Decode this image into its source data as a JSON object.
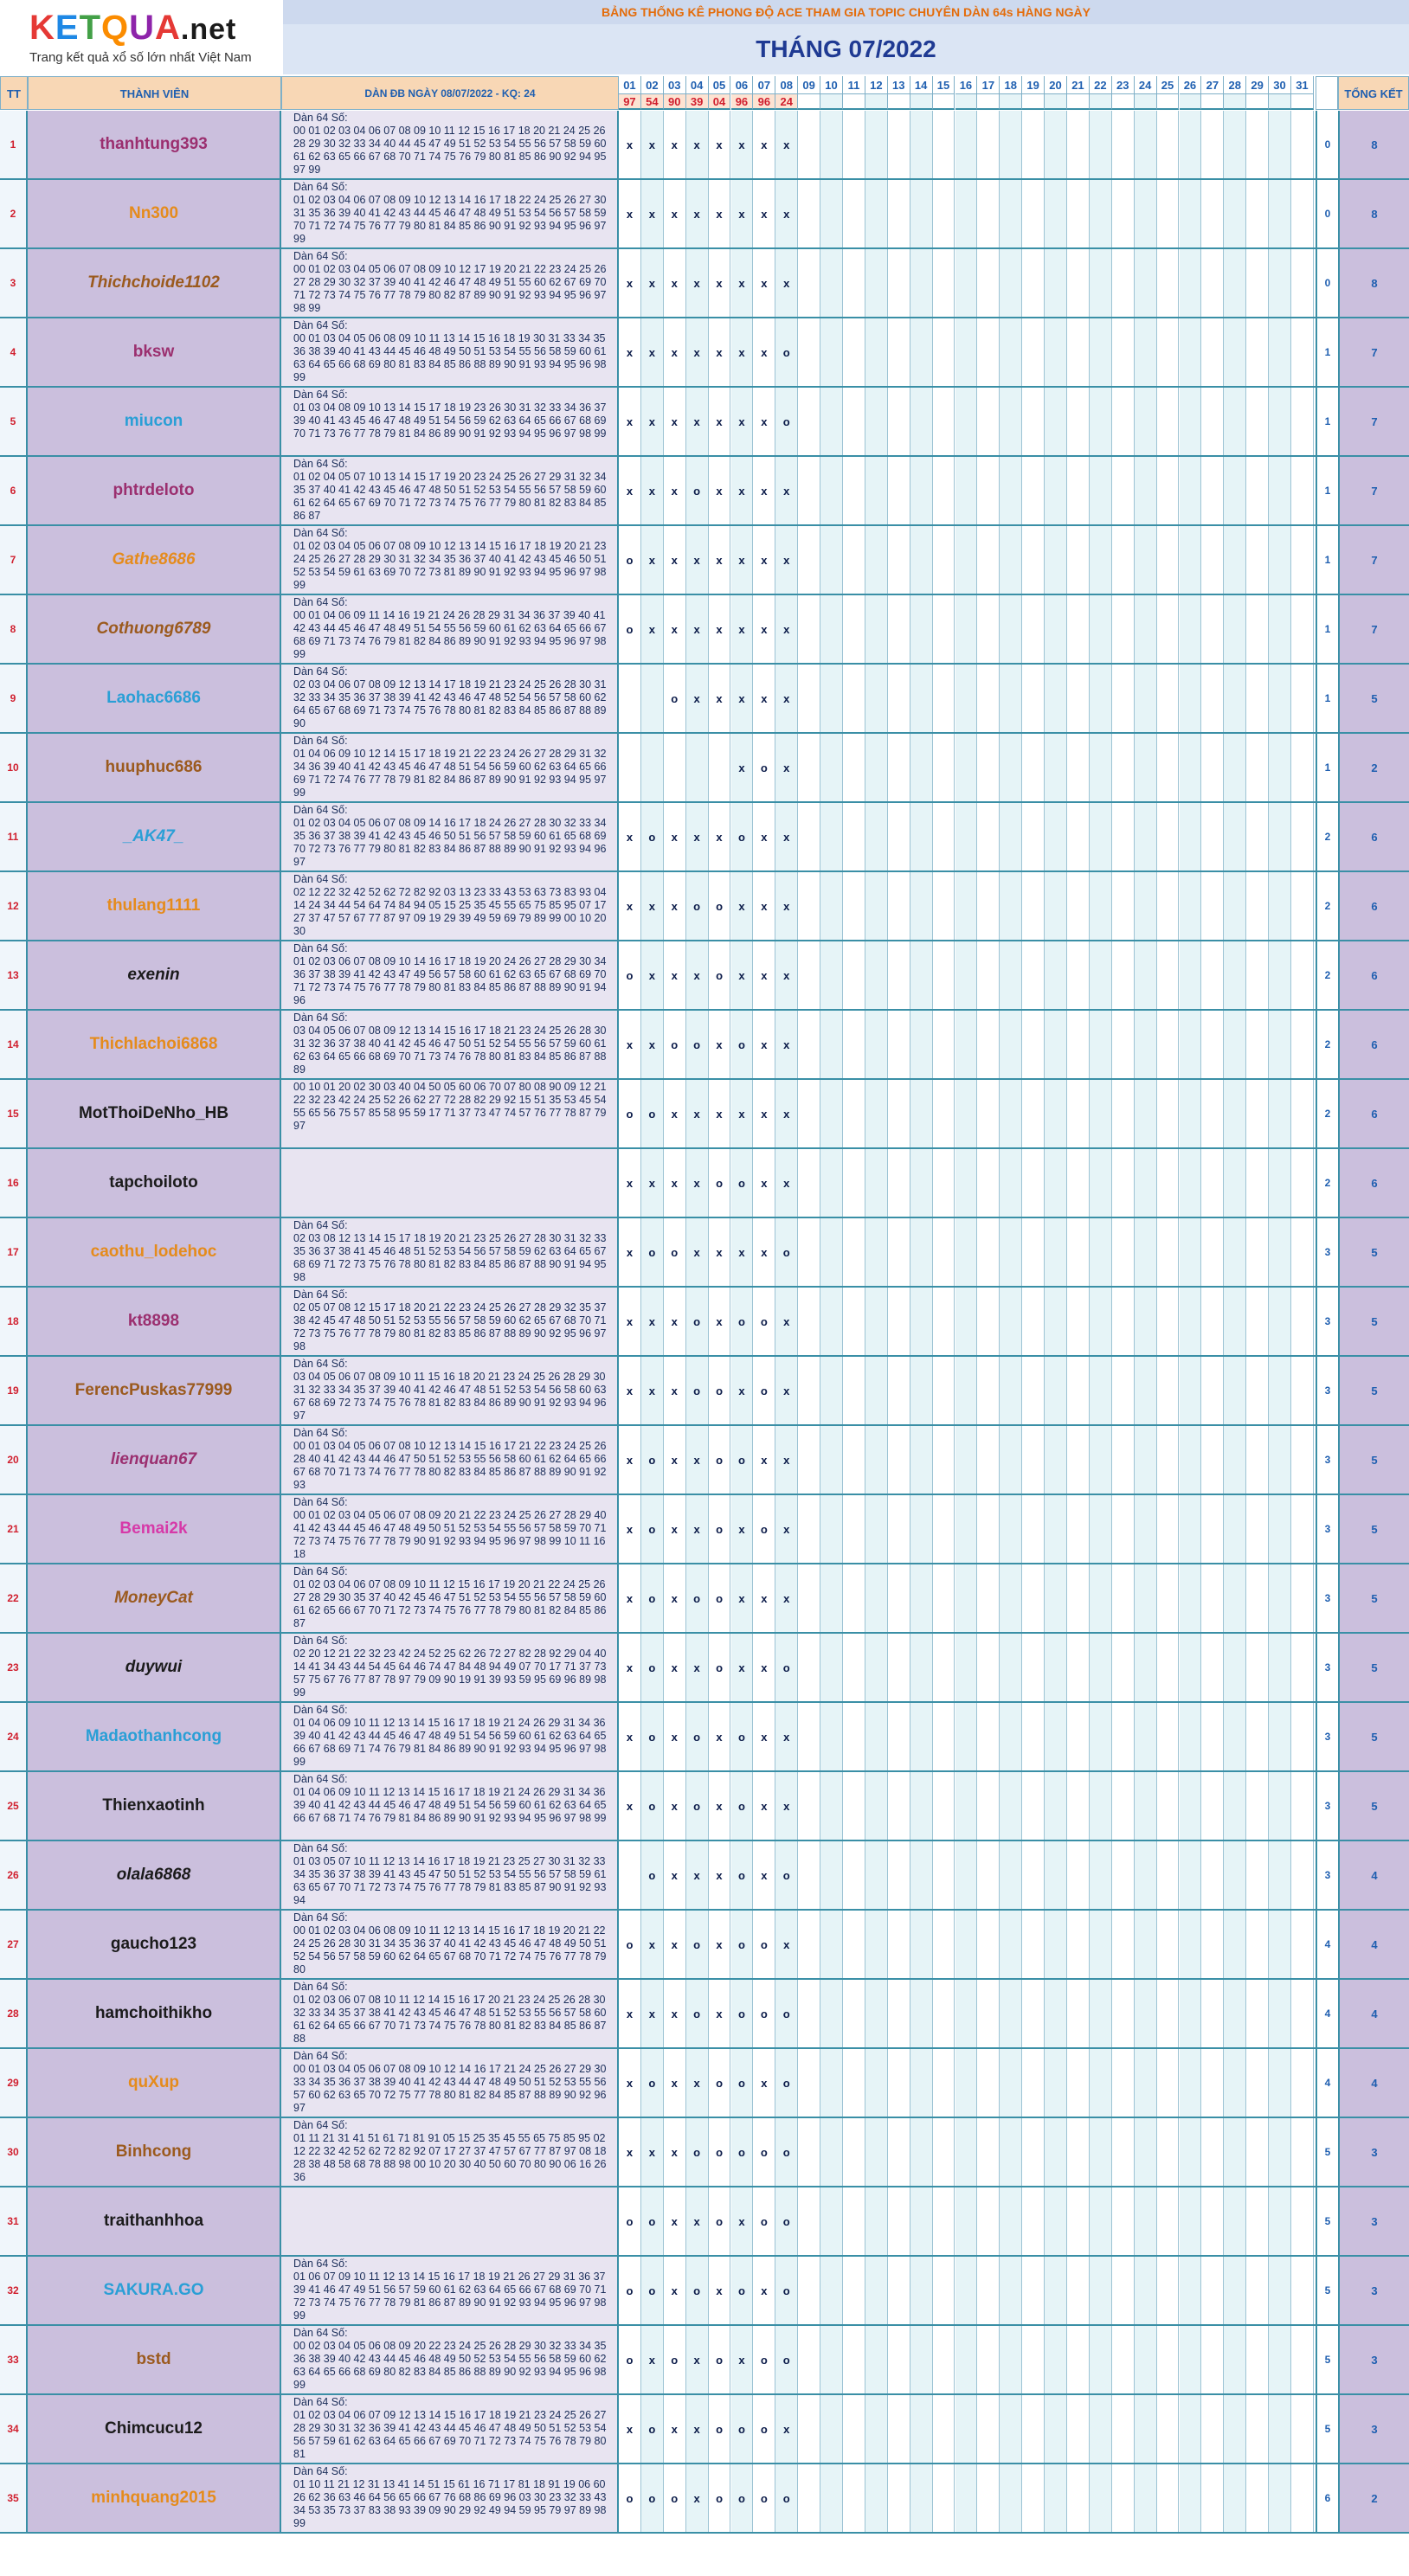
{
  "logo": {
    "word": "KETQUA.net",
    "sub": "Trang kết quả xổ số lớn nhất Việt Nam",
    "colors": [
      "#e53935",
      "#1e88e5",
      "#43a047",
      "#fb8c00",
      "#8e24aa",
      "#e53935"
    ]
  },
  "banner": "BẢNG THỐNG KÊ PHONG ĐỘ ACE THAM GIA TOPIC CHUYÊN DÀN 64s HÀNG NGÀY",
  "month_title": "THÁNG 07/2022",
  "headers": {
    "tt": "TT",
    "member": "THÀNH VIÊN",
    "dan": "DÀN ĐB NGÀY 08/07/2022 - KQ: 24",
    "total": "TỔNG KẾT"
  },
  "days": [
    "01",
    "02",
    "03",
    "04",
    "05",
    "06",
    "07",
    "08",
    "09",
    "10",
    "11",
    "12",
    "13",
    "14",
    "15",
    "16",
    "17",
    "18",
    "19",
    "20",
    "21",
    "22",
    "23",
    "24",
    "25",
    "26",
    "27",
    "28",
    "29",
    "30",
    "31"
  ],
  "results": [
    "97",
    "54",
    "90",
    "39",
    "04",
    "96",
    "96",
    "24"
  ],
  "rows": [
    {
      "tt": "1",
      "name": "thanhtung393",
      "color": "#9b2f6f",
      "italic": false,
      "dan": "Dàn 64 Số:\n00 01 02 03 04 06 07 08 09 10 11 12 15 16 17 18 20 21 24 25 26 28 29 30 32 33 34 40 44 45 47 49 51 52 53 54 55 56 57 58 59 60 61 62 63 65 66 67 68 70 71 74 75 76 79 80 81 85 86 90 92 94 95 97 99",
      "marks": [
        "x",
        "x",
        "x",
        "x",
        "x",
        "x",
        "x",
        "x"
      ],
      "miss": "0",
      "total": "8"
    },
    {
      "tt": "2",
      "name": "Nn300",
      "color": "#e58b1c",
      "italic": false,
      "dan": "Dàn 64 Số:\n01 02 03 04 06 07 08 09 10 12 13 14 16 17 18 22 24 25 26 27 30 31 35 36 39 40 41 42 43 44 45 46 47 48 49 51 53 54 56 57 58 59 70 71 72 74 75 76 77 79 80 81 84 85 86 90 91 92 93 94 95 96 97 99",
      "marks": [
        "x",
        "x",
        "x",
        "x",
        "x",
        "x",
        "x",
        "x"
      ],
      "miss": "0",
      "total": "8"
    },
    {
      "tt": "3",
      "name": "Thichchoide1102",
      "color": "#9b5a1e",
      "italic": true,
      "dan": "Dàn 64 Số:\n00 01 02 03 04 05 06 07 08 09 10 12 17 19 20 21 22 23 24 25 26 27 28 29 30 32 37 39 40 41 42 46 47 48 49 51 55 60 62 67 69 70 71 72 73 74 75 76 77 78 79 80 82 87 89 90 91 92 93 94 95 96 97 98 99",
      "marks": [
        "x",
        "x",
        "x",
        "x",
        "x",
        "x",
        "x",
        "x"
      ],
      "miss": "0",
      "total": "8"
    },
    {
      "tt": "4",
      "name": "bksw",
      "color": "#9b2f6f",
      "italic": false,
      "dan": "Dàn 64 Số:\n00 01 03 04 05 06 08 09 10 11 13 14 15 16 18 19 30 31 33 34 35 36 38 39 40 41 43 44 45 46 48 49 50 51 53 54 55 56 58 59 60 61 63 64 65 66 68 69 80 81 83 84 85 86 88 89 90 91 93 94 95 96 98 99",
      "marks": [
        "x",
        "x",
        "x",
        "x",
        "x",
        "x",
        "x",
        "o"
      ],
      "miss": "1",
      "total": "7"
    },
    {
      "tt": "5",
      "name": "miucon",
      "color": "#2a9fd6",
      "italic": false,
      "dan": "Dàn 64 Số:\n01 03 04 08 09 10 13 14 15 17 18 19 23 26 30 31 32 33 34 36 37 39 40 41 43 45 46 47 48 49 51 54 56 59 62 63 64 65 66 67 68 69 70 71 73 76 77 78 79 81 84 86 89 90 91 92 93 94 95 96 97 98 99",
      "marks": [
        "x",
        "x",
        "x",
        "x",
        "x",
        "x",
        "x",
        "o"
      ],
      "miss": "1",
      "total": "7"
    },
    {
      "tt": "6",
      "name": "phtrdeloto",
      "color": "#9b2f6f",
      "italic": false,
      "dan": "Dàn 64 Số:\n01 02 04 05 07 10 13 14 15 17 19 20 23 24 25 26 27 29 31 32 34 35 37 40 41 42 43 45 46 47 48 50 51 52 53 54 55 56 57 58 59 60 61 62 64 65 67 69 70 71 72 73 74 75 76 77 79 80 81 82 83 84 85 86 87",
      "marks": [
        "x",
        "x",
        "x",
        "o",
        "x",
        "x",
        "x",
        "x"
      ],
      "miss": "1",
      "total": "7"
    },
    {
      "tt": "7",
      "name": "Gathe8686",
      "color": "#e58b1c",
      "italic": true,
      "dan": "Dàn 64 Số:\n01 02 03 04 05 06 07 08 09 10 12 13 14 15 16 17 18 19 20 21 23 24 25 26 27 28 29 30 31 32 34 35 36 37 40 41 42 43 45 46 50 51 52 53 54 59 61 63 69 70 72 73 81 89 90 91 92 93 94 95 96 97 98 99",
      "marks": [
        "o",
        "x",
        "x",
        "x",
        "x",
        "x",
        "x",
        "x"
      ],
      "miss": "1",
      "total": "7"
    },
    {
      "tt": "8",
      "name": "Cothuong6789",
      "color": "#9b5a1e",
      "italic": true,
      "dan": "Dàn 64 Số:\n00 01 04 06 09 11 14 16 19 21 24 26 28 29 31 34 36 37 39 40 41 42 43 44 45 46 47 48 49 51 54 55 56 59 60 61 62 63 64 65 66 67 68 69 71 73 74 76 79 81 82 84 86 89 90 91 92 93 94 95 96 97 98 99",
      "marks": [
        "o",
        "x",
        "x",
        "x",
        "x",
        "x",
        "x",
        "x"
      ],
      "miss": "1",
      "total": "7"
    },
    {
      "tt": "9",
      "name": "Laohac6686",
      "color": "#2a9fd6",
      "italic": false,
      "dan": "Dàn 64 Số:\n02 03 04 06 07 08 09 12 13 14 17 18 19 21 23 24 25 26 28 30 31 32 33 34 35 36 37 38 39 41 42 43 46 47 48 52 54 56 57 58 60 62 64 65 67 68 69 71 73 74 75 76 78 80 81 82 83 84 85 86 87 88 89 90",
      "marks": [
        "",
        "",
        "o",
        "x",
        "x",
        "x",
        "x",
        "x"
      ],
      "miss": "1",
      "total": "5"
    },
    {
      "tt": "10",
      "name": "huuphuc686",
      "color": "#9b5a1e",
      "italic": false,
      "dan": "Dàn 64 Số:\n01 04 06 09 10 12 14 15 17 18 19 21 22 23 24 26 27 28 29 31 32 34 36 39 40 41 42 43 45 46 47 48 51 54 56 59 60 62 63 64 65 66 69 71 72 74 76 77 78 79 81 82 84 86 87 89 90 91 92 93 94 95 97 99",
      "marks": [
        "",
        "",
        "",
        "",
        "",
        "x",
        "o",
        "x"
      ],
      "miss": "1",
      "total": "2"
    },
    {
      "tt": "11",
      "name": "_AK47_",
      "color": "#2a9fd6",
      "italic": true,
      "dan": "Dàn 64 Số:\n01 02 03 04 05 06 07 08 09 14 16 17 18 24 26 27 28 30 32 33 34 35 36 37 38 39 41 42 43 45 46 50 51 56 57 58 59 60 61 65 68 69 70 72 73 76 77 79 80 81 82 83 84 86 87 88 89 90 91 92 93 94 96 97",
      "marks": [
        "x",
        "o",
        "x",
        "x",
        "x",
        "o",
        "x",
        "x"
      ],
      "miss": "2",
      "total": "6"
    },
    {
      "tt": "12",
      "name": "thulang1111",
      "color": "#e58b1c",
      "italic": false,
      "dan": "Dàn 64 Số:\n02 12 22 32 42 52 62 72 82 92 03 13 23 33 43 53 63 73 83 93 04 14 24 34 44 54 64 74 84 94 05 15 25 35 45 55 65 75 85 95 07 17 27 37 47 57 67 77 87 97 09 19 29 39 49 59 69 79 89 99 00 10 20 30",
      "marks": [
        "x",
        "x",
        "x",
        "o",
        "o",
        "x",
        "x",
        "x"
      ],
      "miss": "2",
      "total": "6"
    },
    {
      "tt": "13",
      "name": "exenin",
      "color": "#1b1b1b",
      "italic": true,
      "dan": "Dàn 64 Số:\n01 02 03 06 07 08 09 10 14 16 17 18 19 20 24 26 27 28 29 30 34 36 37 38 39 41 42 43 47 49 56 57 58 60 61 62 63 65 67 68 69 70 71 72 73 74 75 76 77 78 79 80 81 83 84 85 86 87 88 89 90 91 94 96",
      "marks": [
        "o",
        "x",
        "x",
        "x",
        "o",
        "x",
        "x",
        "x"
      ],
      "miss": "2",
      "total": "6"
    },
    {
      "tt": "14",
      "name": "Thichlachoi6868",
      "color": "#e58b1c",
      "italic": false,
      "dan": "Dàn 64 Số:\n03 04 05 06 07 08 09 12 13 14 15 16 17 18 21 23 24 25 26 28 30 31 32 36 37 38 40 41 42 45 46 47 50 51 52 54 55 56 57 59 60 61 62 63 64 65 66 68 69 70 71 73 74 76 78 80 81 83 84 85 86 87 88 89",
      "marks": [
        "x",
        "x",
        "o",
        "o",
        "x",
        "o",
        "x",
        "x"
      ],
      "miss": "2",
      "total": "6"
    },
    {
      "tt": "15",
      "name": "MotThoiDeNho_HB",
      "color": "#1b1b1b",
      "italic": false,
      "dan": "00 10 01 20 02 30 03 40 04 50 05 60 06 70 07 80 08 90 09 12 21 22 32 23 42 24 25 52 26 62 27 72 28 82 29 92 15 51 35 53 45 54 55 65 56 75 57 85 58 95 59 17 71 37 73 47 74 57 76 77 78 87 79 97",
      "marks": [
        "o",
        "o",
        "x",
        "x",
        "x",
        "x",
        "x",
        "x"
      ],
      "miss": "2",
      "total": "6"
    },
    {
      "tt": "16",
      "name": "tapchoiloto",
      "color": "#1b1b1b",
      "italic": false,
      "dan": "",
      "marks": [
        "x",
        "x",
        "x",
        "x",
        "o",
        "o",
        "x",
        "x"
      ],
      "miss": "2",
      "total": "6"
    },
    {
      "tt": "17",
      "name": "caothu_lodehoc",
      "color": "#e58b1c",
      "italic": false,
      "dan": "Dàn 64 Số:\n02 03 08 12 13 14 15 17 18 19 20 21 23 25 26 27 28 30 31 32 33 35 36 37 38 41 45 46 48 51 52 53 54 56 57 58 59 62 63 64 65 67 68 69 71 72 73 75 76 78 80 81 82 83 84 85 86 87 88 90 91 94 95 98",
      "marks": [
        "x",
        "o",
        "o",
        "x",
        "x",
        "x",
        "x",
        "o"
      ],
      "miss": "3",
      "total": "5"
    },
    {
      "tt": "18",
      "name": "kt8898",
      "color": "#9b2f6f",
      "italic": false,
      "dan": "Dàn 64 Số:\n02 05 07 08 12 15 17 18 20 21 22 23 24 25 26 27 28 29 32 35 37 38 42 45 47 48 50 51 52 53 55 56 57 58 59 60 62 65 67 68 70 71 72 73 75 76 77 78 79 80 81 82 83 85 86 87 88 89 90 92 95 96 97 98",
      "marks": [
        "x",
        "x",
        "x",
        "o",
        "x",
        "o",
        "o",
        "x"
      ],
      "miss": "3",
      "total": "5"
    },
    {
      "tt": "19",
      "name": "FerencPuskas77999",
      "color": "#9b5a1e",
      "italic": false,
      "dan": "Dàn 64 Số:\n03 04 05 06 07 08 09 10 11 15 16 18 20 21 23 24 25 26 28 29 30 31 32 33 34 35 37 39 40 41 42 46 47 48 51 52 53 54 56 58 60 63 67 68 69 72 73 74 75 76 78 81 82 83 84 86 89 90 91 92 93 94 96 97",
      "marks": [
        "x",
        "x",
        "x",
        "o",
        "o",
        "x",
        "o",
        "x"
      ],
      "miss": "3",
      "total": "5"
    },
    {
      "tt": "20",
      "name": "lienquan67",
      "color": "#9b2f6f",
      "italic": true,
      "dan": "Dàn 64 Số:\n00 01 03 04 05 06 07 08 10 12 13 14 15 16 17 21 22 23 24 25 26 28 40 41 42 43 44 46 47 50 51 52 53 55 56 58 60 61 62 64 65 66 67 68 70 71 73 74 76 77 78 80 82 83 84 85 86 87 88 89 90 91 92 93",
      "marks": [
        "x",
        "o",
        "x",
        "x",
        "o",
        "o",
        "x",
        "x"
      ],
      "miss": "3",
      "total": "5"
    },
    {
      "tt": "21",
      "name": "Bemai2k",
      "color": "#d63aa8",
      "italic": false,
      "dan": "Dàn 64 Số:\n00 01 02 03 04 05 06 07 08 09 20 21 22 23 24 25 26 27 28 29 40 41 42 43 44 45 46 47 48 49 50 51 52 53 54 55 56 57 58 59 70 71 72 73 74 75 76 77 78 79 90 91 92 93 94 95 96 97 98 99 10 11 16 18",
      "marks": [
        "x",
        "o",
        "x",
        "x",
        "o",
        "x",
        "o",
        "x"
      ],
      "miss": "3",
      "total": "5"
    },
    {
      "tt": "22",
      "name": "MoneyCat",
      "color": "#9b5a1e",
      "italic": true,
      "dan": "Dàn 64 Số:\n01 02 03 04 06 07 08 09 10 11 12 15 16 17 19 20 21 22 24 25 26 27 28 29 30 35 37 40 42 45 46 47 51 52 53 54 55 56 57 58 59 60 61 62 65 66 67 70 71 72 73 74 75 76 77 78 79 80 81 82 84 85 86 87",
      "marks": [
        "x",
        "o",
        "x",
        "o",
        "o",
        "x",
        "x",
        "x"
      ],
      "miss": "3",
      "total": "5"
    },
    {
      "tt": "23",
      "name": "duywui",
      "color": "#1b1b1b",
      "italic": true,
      "dan": "Dàn 64 Số:\n02 20 12 21 22 32 23 42 24 52 25 62 26 72 27 82 28 92 29 04 40 14 41 34 43 44 54 45 64 46 74 47 84 48 94 49 07 70 17 71 37 73 57 75 67 76 77 87 78 97 79 09 90 19 91 39 93 59 95 69 96 89 98 99",
      "marks": [
        "x",
        "o",
        "x",
        "x",
        "o",
        "x",
        "x",
        "o"
      ],
      "miss": "3",
      "total": "5"
    },
    {
      "tt": "24",
      "name": "Madaothanhcong",
      "color": "#2a9fd6",
      "italic": false,
      "dan": "Dàn 64 Số:\n01 04 06 09 10 11 12 13 14 15 16 17 18 19 21 24 26 29 31 34 36 39 40 41 42 43 44 45 46 47 48 49 51 54 56 59 60 61 62 63 64 65 66 67 68 69 71 74 76 79 81 84 86 89 90 91 92 93 94 95 96 97 98 99",
      "marks": [
        "x",
        "o",
        "x",
        "o",
        "x",
        "o",
        "x",
        "x"
      ],
      "miss": "3",
      "total": "5"
    },
    {
      "tt": "25",
      "name": "Thienxaotinh",
      "color": "#1b1b1b",
      "italic": false,
      "dan": "Dàn 64 Số:\n01 04 06 09 10 11 12 13 14 15 16 17 18 19 21 24 26 29 31 34 36 39 40 41 42 43 44 45 46 47 48 49 51 54 56 59 60 61 62 63 64 65 66 67 68 71 74 76 79 81 84 86 89 90 91 92 93 94 95 96 97 98 99",
      "marks": [
        "x",
        "o",
        "x",
        "o",
        "x",
        "o",
        "x",
        "x"
      ],
      "miss": "3",
      "total": "5"
    },
    {
      "tt": "26",
      "name": "olala6868",
      "color": "#1b1b1b",
      "italic": true,
      "dan": "Dàn 64 Số:\n01 03 05 07 10 11 12 13 14 16 17 18 19 21 23 25 27 30 31 32 33 34 35 36 37 38 39 41 43 45 47 50 51 52 53 54 55 56 57 58 59 61 63 65 67 70 71 72 73 74 75 76 77 78 79 81 83 85 87 90 91 92 93 94",
      "marks": [
        "",
        "o",
        "x",
        "x",
        "x",
        "o",
        "x",
        "o"
      ],
      "miss": "3",
      "total": "4"
    },
    {
      "tt": "27",
      "name": "gaucho123",
      "color": "#1b1b1b",
      "italic": false,
      "dan": "Dàn 64 Số:\n00 01 02 03 04 06 08 09 10 11 12 13 14 15 16 17 18 19 20 21 22 24 25 26 28 30 31 34 35 36 37 40 41 42 43 45 46 47 48 49 50 51 52 54 56 57 58 59 60 62 64 65 67 68 70 71 72 74 75 76 77 78 79 80",
      "marks": [
        "o",
        "x",
        "x",
        "o",
        "x",
        "o",
        "o",
        "x"
      ],
      "miss": "4",
      "total": "4"
    },
    {
      "tt": "28",
      "name": "hamchoithikho",
      "color": "#1b1b1b",
      "italic": false,
      "dan": "Dàn 64 Số:\n01 02 03 06 07 08 10 11 12 14 15 16 17 20 21 23 24 25 26 28 30 32 33 34 35 37 38 41 42 43 45 46 47 48 51 52 53 55 56 57 58 60 61 62 64 65 66 67 70 71 73 74 75 76 78 80 81 82 83 84 85 86 87 88",
      "marks": [
        "x",
        "x",
        "x",
        "o",
        "x",
        "o",
        "o",
        "o"
      ],
      "miss": "4",
      "total": "4"
    },
    {
      "tt": "29",
      "name": "quXup",
      "color": "#e58b1c",
      "italic": false,
      "dan": "Dàn 64 Số:\n00 01 03 04 05 06 07 08 09 10 12 14 16 17 21 24 25 26 27 29 30 33 34 35 36 37 38 39 40 41 42 43 44 47 48 49 50 51 52 53 55 56 57 60 62 63 65 70 72 75 77 78 80 81 82 84 85 87 88 89 90 92 96 97",
      "marks": [
        "x",
        "o",
        "x",
        "x",
        "o",
        "o",
        "x",
        "o"
      ],
      "miss": "4",
      "total": "4"
    },
    {
      "tt": "30",
      "name": "Binhcong",
      "color": "#9b5a1e",
      "italic": false,
      "dan": "Dàn 64 Số:\n01 11 21 31 41 51 61 71 81 91 05 15 25 35 45 55 65 75 85 95 02 12 22 32 42 52 62 72 82 92 07 17 27 37 47 57 67 77 87 97 08 18 28 38 48 58 68 78 88 98 00 10 20 30 40 50 60 70 80 90 06 16 26 36",
      "marks": [
        "x",
        "x",
        "x",
        "o",
        "o",
        "o",
        "o",
        "o"
      ],
      "miss": "5",
      "total": "3"
    },
    {
      "tt": "31",
      "name": "traithanhhoa",
      "color": "#1b1b1b",
      "italic": false,
      "dan": "",
      "marks": [
        "o",
        "o",
        "x",
        "x",
        "o",
        "x",
        "o",
        "o"
      ],
      "miss": "5",
      "total": "3"
    },
    {
      "tt": "32",
      "name": "SAKURA.GO",
      "color": "#2a9fd6",
      "italic": false,
      "dan": "Dàn 64 Số:\n01 06 07 09 10 11 12 13 14 15 16 17 18 19 21 26 27 29 31 36 37 39 41 46 47 49 51 56 57 59 60 61 62 63 64 65 66 67 68 69 70 71 72 73 74 75 76 77 78 79 81 86 87 89 90 91 92 93 94 95 96 97 98 99",
      "marks": [
        "o",
        "o",
        "x",
        "o",
        "x",
        "o",
        "x",
        "o"
      ],
      "miss": "5",
      "total": "3"
    },
    {
      "tt": "33",
      "name": "bstd",
      "color": "#9b5a1e",
      "italic": false,
      "dan": "Dàn 64 Số:\n00 02 03 04 05 06 08 09 20 22 23 24 25 26 28 29 30 32 33 34 35 36 38 39 40 42 43 44 45 46 48 49 50 52 53 54 55 56 58 59 60 62 63 64 65 66 68 69 80 82 83 84 85 86 88 89 90 92 93 94 95 96 98 99",
      "marks": [
        "o",
        "x",
        "o",
        "x",
        "o",
        "x",
        "o",
        "o"
      ],
      "miss": "5",
      "total": "3"
    },
    {
      "tt": "34",
      "name": "Chimcucu12",
      "color": "#1b1b1b",
      "italic": false,
      "dan": "Dàn 64 Số:\n01 02 03 04 06 07 09 12 13 14 15 16 17 18 19 21 23 24 25 26 27 28 29 30 31 32 36 39 41 42 43 44 45 46 47 48 49 50 51 52 53 54 56 57 59 61 62 63 64 65 66 67 69 70 71 72 73 74 75 76 78 79 80 81",
      "marks": [
        "x",
        "o",
        "x",
        "x",
        "o",
        "o",
        "o",
        "x"
      ],
      "miss": "5",
      "total": "3"
    },
    {
      "tt": "35",
      "name": "minhquang2015",
      "color": "#e58b1c",
      "italic": false,
      "dan": "Dàn 64 Số:\n01 10 11 21 12 31 13 41 14 51 15 61 16 71 17 81 18 91 19 06 60 26 62 36 63 46 64 56 65 66 67 76 68 86 69 96 03 30 23 32 33 43 34 53 35 73 37 83 38 93 39 09 90 29 92 49 94 59 95 79 97 89 98 99",
      "marks": [
        "o",
        "o",
        "o",
        "x",
        "o",
        "o",
        "o",
        "o"
      ],
      "miss": "6",
      "total": "2"
    }
  ]
}
